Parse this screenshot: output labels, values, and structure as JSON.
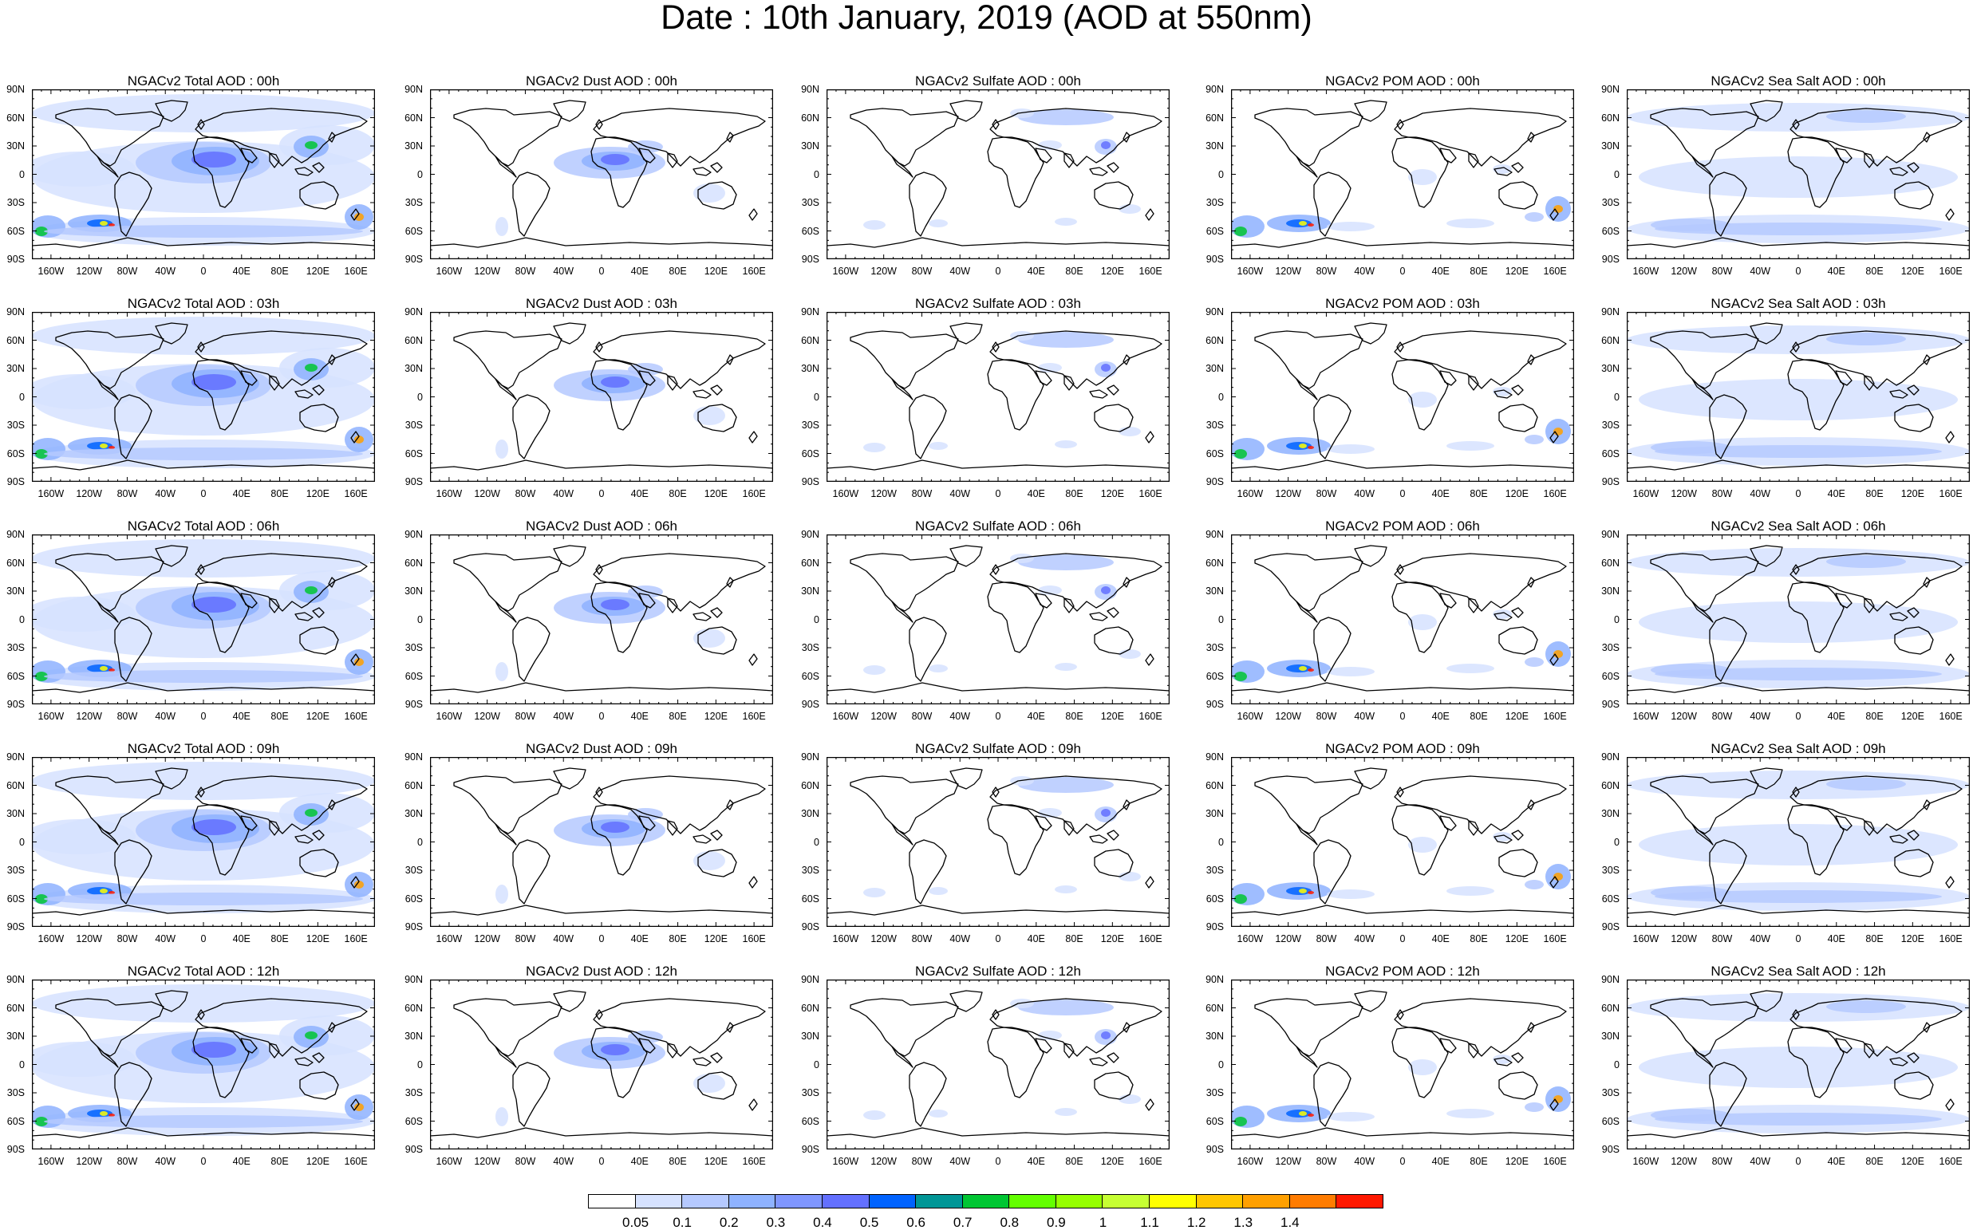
{
  "figure": {
    "title": "Date : 10th January, 2019 (AOD at 550nm)",
    "lat_labels": [
      "90N",
      "60N",
      "30N",
      "0",
      "30S",
      "60S",
      "90S"
    ],
    "lon_labels": [
      "160W",
      "120W",
      "80W",
      "40W",
      "0",
      "40E",
      "80E",
      "120E",
      "160E"
    ]
  },
  "panels": [
    {
      "title": "NGACv2 Total AOD : 00h",
      "species": "total",
      "hour": "00h"
    },
    {
      "title": "NGACv2 Dust AOD : 00h",
      "species": "dust",
      "hour": "00h"
    },
    {
      "title": "NGACv2 Sulfate AOD : 00h",
      "species": "sulfate",
      "hour": "00h"
    },
    {
      "title": "NGACv2 POM AOD : 00h",
      "species": "pom",
      "hour": "00h"
    },
    {
      "title": "NGACv2 Sea Salt AOD : 00h",
      "species": "seasalt",
      "hour": "00h"
    },
    {
      "title": "NGACv2 Total AOD : 03h",
      "species": "total",
      "hour": "03h"
    },
    {
      "title": "NGACv2 Dust AOD : 03h",
      "species": "dust",
      "hour": "03h"
    },
    {
      "title": "NGACv2 Sulfate AOD : 03h",
      "species": "sulfate",
      "hour": "03h"
    },
    {
      "title": "NGACv2 POM AOD : 03h",
      "species": "pom",
      "hour": "03h"
    },
    {
      "title": "NGACv2 Sea Salt AOD : 03h",
      "species": "seasalt",
      "hour": "03h"
    },
    {
      "title": "NGACv2 Total AOD : 06h",
      "species": "total",
      "hour": "06h"
    },
    {
      "title": "NGACv2 Dust AOD : 06h",
      "species": "dust",
      "hour": "06h"
    },
    {
      "title": "NGACv2 Sulfate AOD : 06h",
      "species": "sulfate",
      "hour": "06h"
    },
    {
      "title": "NGACv2 POM AOD : 06h",
      "species": "pom",
      "hour": "06h"
    },
    {
      "title": "NGACv2 Sea Salt AOD : 06h",
      "species": "seasalt",
      "hour": "06h"
    },
    {
      "title": "NGACv2 Total AOD : 09h",
      "species": "total",
      "hour": "09h"
    },
    {
      "title": "NGACv2 Dust AOD : 09h",
      "species": "dust",
      "hour": "09h"
    },
    {
      "title": "NGACv2 Sulfate AOD : 09h",
      "species": "sulfate",
      "hour": "09h"
    },
    {
      "title": "NGACv2 POM AOD : 09h",
      "species": "pom",
      "hour": "09h"
    },
    {
      "title": "NGACv2 Sea Salt  AOD : 09h",
      "species": "seasalt",
      "hour": "09h"
    },
    {
      "title": "NGACv2 Total AOD :  12h",
      "species": "total",
      "hour": "12h"
    },
    {
      "title": "NGACv2 Dust AOD : 12h",
      "species": "dust",
      "hour": "12h"
    },
    {
      "title": "NGACv2 Sulfate AOD : 12h",
      "species": "sulfate",
      "hour": "12h"
    },
    {
      "title": "NGACv2 POM  AOD : 12h",
      "species": "pom",
      "hour": "12h"
    },
    {
      "title": "NGACv2 Sea Salt  AOD : 12h",
      "species": "seasalt",
      "hour": "12h"
    }
  ],
  "colorbar": {
    "labels": [
      "0.05",
      "0.1",
      "0.2",
      "0.3",
      "0.4",
      "0.5",
      "0.6",
      "0.7",
      "0.8",
      "0.9",
      "1",
      "1.1",
      "1.2",
      "1.3",
      "1.4"
    ],
    "colors": [
      "#ffffff",
      "#d6e2ff",
      "#b5c9ff",
      "#8eb2ff",
      "#7f96ff",
      "#6370ff",
      "#0063ff",
      "#009696",
      "#00c633",
      "#63ff00",
      "#96ff00",
      "#c6ff33",
      "#ffff00",
      "#ffc600",
      "#ffa000",
      "#ff7c00",
      "#ff1900"
    ]
  }
}
